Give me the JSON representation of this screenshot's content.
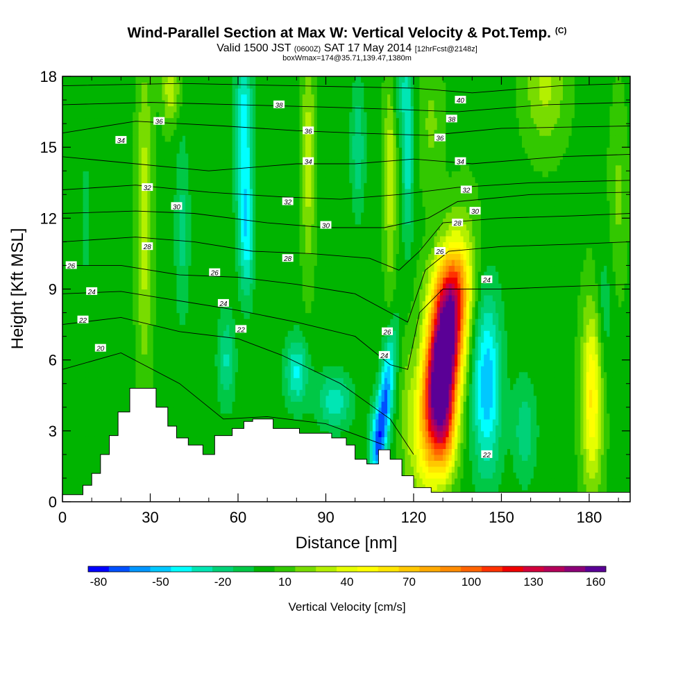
{
  "header": {
    "title": "Wind-Parallel Section at Max W: Vertical Velocity & Pot.Temp.",
    "title_mark": "(C)",
    "valid_prefix": "Valid 1500 JST",
    "valid_zulu": "(0600Z)",
    "valid_date": "SAT 17 May 2014",
    "forecast_info": "[12hrFcst@2148z]",
    "box_info": "boxWmax=174@35.71,139.47,1380m"
  },
  "chart_data": {
    "type": "heatmap",
    "xlabel": "Distance [nm]",
    "ylabel": "Height [Kft MSL]",
    "xlim": [
      0,
      194
    ],
    "ylim": [
      0,
      18
    ],
    "x_ticks": [
      0,
      30,
      60,
      90,
      120,
      150,
      180
    ],
    "y_ticks": [
      0,
      3,
      6,
      9,
      12,
      15,
      18
    ],
    "colorbar": {
      "label": "Vertical Velocity [cm/s]",
      "tick_labels": [
        -80,
        -50,
        -20,
        10,
        40,
        70,
        100,
        130,
        160
      ],
      "min": -85,
      "step": 10,
      "colors": [
        "#0000ff",
        "#0050ff",
        "#0096ff",
        "#00c8ff",
        "#00ffff",
        "#00e6b4",
        "#00d278",
        "#00c846",
        "#00b400",
        "#32c800",
        "#78dc00",
        "#b4f000",
        "#e6ff00",
        "#ffff00",
        "#ffe600",
        "#ffc800",
        "#ffaa00",
        "#ff8c00",
        "#ff6400",
        "#ff3200",
        "#f00000",
        "#d2003c",
        "#b4005a",
        "#8c0078",
        "#5a0096"
      ]
    },
    "terrain": [
      [
        0,
        0.3
      ],
      [
        7,
        0.7
      ],
      [
        10,
        1.2
      ],
      [
        13,
        2.0
      ],
      [
        16,
        2.8
      ],
      [
        19,
        3.8
      ],
      [
        23,
        4.8
      ],
      [
        32,
        4.0
      ],
      [
        36,
        3.2
      ],
      [
        39,
        2.7
      ],
      [
        43,
        2.4
      ],
      [
        48,
        2.0
      ],
      [
        52,
        2.8
      ],
      [
        58,
        3.1
      ],
      [
        62,
        3.4
      ],
      [
        65,
        3.5
      ],
      [
        72,
        3.1
      ],
      [
        81,
        2.9
      ],
      [
        92,
        2.7
      ],
      [
        97,
        2.4
      ],
      [
        100,
        1.8
      ],
      [
        104,
        1.6
      ],
      [
        108,
        2.2
      ],
      [
        112,
        1.8
      ],
      [
        116,
        1.1
      ],
      [
        120,
        0.6
      ],
      [
        126,
        0.4
      ],
      [
        194,
        0.3
      ]
    ],
    "theta_contours": [
      {
        "label": "20",
        "pts": [
          [
            0,
            5.6
          ],
          [
            20,
            6.3
          ],
          [
            40,
            5.0
          ],
          [
            55,
            3.5
          ],
          [
            70,
            3.6
          ],
          [
            90,
            3.3
          ],
          [
            110,
            2.4
          ]
        ]
      },
      {
        "label": "22",
        "pts": [
          [
            0,
            7.5
          ],
          [
            20,
            7.8
          ],
          [
            40,
            7.2
          ],
          [
            60,
            6.9
          ],
          [
            75,
            6.2
          ],
          [
            95,
            5.0
          ],
          [
            112,
            3.5
          ],
          [
            120,
            2.0
          ]
        ]
      },
      {
        "label": "24",
        "pts": [
          [
            0,
            8.8
          ],
          [
            20,
            8.9
          ],
          [
            40,
            8.5
          ],
          [
            60,
            8.1
          ],
          [
            80,
            7.6
          ],
          [
            100,
            7.0
          ],
          [
            112,
            5.8
          ],
          [
            118,
            5.6
          ],
          [
            122,
            8.0
          ],
          [
            130,
            9.0
          ],
          [
            150,
            9.0
          ],
          [
            170,
            9.1
          ],
          [
            194,
            9.2
          ]
        ]
      },
      {
        "label": "26",
        "pts": [
          [
            0,
            10.0
          ],
          [
            20,
            10.0
          ],
          [
            40,
            9.6
          ],
          [
            60,
            9.5
          ],
          [
            80,
            9.2
          ],
          [
            100,
            8.8
          ],
          [
            112,
            8.0
          ],
          [
            118,
            7.6
          ],
          [
            124,
            9.8
          ],
          [
            132,
            10.6
          ],
          [
            150,
            10.8
          ],
          [
            175,
            10.9
          ],
          [
            194,
            11.0
          ]
        ]
      },
      {
        "label": "28",
        "pts": [
          [
            0,
            11.0
          ],
          [
            25,
            11.2
          ],
          [
            45,
            11.0
          ],
          [
            65,
            10.6
          ],
          [
            85,
            10.5
          ],
          [
            105,
            10.3
          ],
          [
            115,
            9.8
          ],
          [
            122,
            10.6
          ],
          [
            130,
            11.8
          ],
          [
            150,
            12.0
          ],
          [
            175,
            12.1
          ],
          [
            194,
            12.2
          ]
        ]
      },
      {
        "label": "30",
        "pts": [
          [
            0,
            12.2
          ],
          [
            25,
            12.3
          ],
          [
            45,
            12.2
          ],
          [
            70,
            11.8
          ],
          [
            90,
            11.6
          ],
          [
            110,
            11.6
          ],
          [
            125,
            12.0
          ],
          [
            135,
            12.7
          ],
          [
            160,
            13.0
          ],
          [
            194,
            13.1
          ]
        ]
      },
      {
        "label": "32",
        "pts": [
          [
            0,
            13.2
          ],
          [
            25,
            13.4
          ],
          [
            50,
            13.1
          ],
          [
            75,
            12.9
          ],
          [
            95,
            12.8
          ],
          [
            115,
            13.0
          ],
          [
            135,
            13.3
          ],
          [
            160,
            13.5
          ],
          [
            194,
            13.6
          ]
        ]
      },
      {
        "label": "34",
        "pts": [
          [
            0,
            14.6
          ],
          [
            25,
            14.3
          ],
          [
            50,
            14.0
          ],
          [
            80,
            14.3
          ],
          [
            100,
            14.3
          ],
          [
            120,
            14.5
          ],
          [
            140,
            14.3
          ],
          [
            170,
            14.6
          ],
          [
            194,
            14.7
          ]
        ]
      },
      {
        "label": "36",
        "pts": [
          [
            0,
            15.6
          ],
          [
            25,
            16.1
          ],
          [
            55,
            15.9
          ],
          [
            80,
            15.7
          ],
          [
            100,
            15.6
          ],
          [
            125,
            15.5
          ],
          [
            150,
            15.8
          ],
          [
            194,
            15.9
          ]
        ]
      },
      {
        "label": "38",
        "pts": [
          [
            0,
            16.8
          ],
          [
            30,
            16.9
          ],
          [
            60,
            16.8
          ],
          [
            90,
            16.7
          ],
          [
            115,
            16.6
          ],
          [
            135,
            16.5
          ],
          [
            165,
            16.8
          ],
          [
            194,
            16.9
          ]
        ]
      },
      {
        "label": "40",
        "pts": [
          [
            0,
            17.6
          ],
          [
            40,
            17.7
          ],
          [
            80,
            17.6
          ],
          [
            120,
            17.5
          ],
          [
            140,
            17.3
          ],
          [
            170,
            17.6
          ],
          [
            194,
            17.7
          ]
        ]
      }
    ],
    "theta_labels": [
      {
        "text": "20",
        "x": 13,
        "y": 6.5
      },
      {
        "text": "22",
        "x": 7,
        "y": 7.7
      },
      {
        "text": "24",
        "x": 10,
        "y": 8.9
      },
      {
        "text": "26",
        "x": 3,
        "y": 10.0
      },
      {
        "text": "28",
        "x": 29,
        "y": 10.8
      },
      {
        "text": "32",
        "x": 29,
        "y": 13.3
      },
      {
        "text": "34",
        "x": 20,
        "y": 15.3
      },
      {
        "text": "36",
        "x": 33,
        "y": 16.1
      },
      {
        "text": "30",
        "x": 39,
        "y": 12.5
      },
      {
        "text": "26",
        "x": 52,
        "y": 9.7
      },
      {
        "text": "24",
        "x": 55,
        "y": 8.4
      },
      {
        "text": "22",
        "x": 61,
        "y": 7.3
      },
      {
        "text": "28",
        "x": 77,
        "y": 10.3
      },
      {
        "text": "32",
        "x": 77,
        "y": 12.7
      },
      {
        "text": "30",
        "x": 90,
        "y": 11.7
      },
      {
        "text": "34",
        "x": 84,
        "y": 14.4
      },
      {
        "text": "36",
        "x": 84,
        "y": 15.7
      },
      {
        "text": "38",
        "x": 74,
        "y": 16.8
      },
      {
        "text": "26",
        "x": 111,
        "y": 7.2
      },
      {
        "text": "24",
        "x": 110,
        "y": 6.2
      },
      {
        "text": "26",
        "x": 129,
        "y": 10.6
      },
      {
        "text": "28",
        "x": 135,
        "y": 11.8
      },
      {
        "text": "30",
        "x": 141,
        "y": 12.3
      },
      {
        "text": "32",
        "x": 138,
        "y": 13.2
      },
      {
        "text": "34",
        "x": 136,
        "y": 14.4
      },
      {
        "text": "36",
        "x": 129,
        "y": 15.4
      },
      {
        "text": "38",
        "x": 133,
        "y": 16.2
      },
      {
        "text": "40",
        "x": 136,
        "y": 17.0
      },
      {
        "text": "24",
        "x": 145,
        "y": 9.4
      },
      {
        "text": "22",
        "x": 145,
        "y": 2.0
      }
    ],
    "w_features": [
      {
        "x": 130,
        "y": 6.0,
        "sx": 6,
        "sy": 4.0,
        "a": 200,
        "tilt": 0.9
      },
      {
        "x": 131,
        "y": 3.0,
        "sx": 4,
        "sy": 2.0,
        "a": 50,
        "tilt": 0
      },
      {
        "x": 132,
        "y": 9.0,
        "sx": 8,
        "sy": 1.6,
        "a": 25,
        "tilt": 0
      },
      {
        "x": 110,
        "y": 4.0,
        "sx": 2.6,
        "sy": 3.0,
        "a": -70,
        "tilt": 0.8
      },
      {
        "x": 107,
        "y": 2.5,
        "sx": 2.5,
        "sy": 1.5,
        "a": -30,
        "tilt": 0
      },
      {
        "x": 145,
        "y": 5.0,
        "sx": 5,
        "sy": 3.8,
        "a": -55,
        "tilt": 0
      },
      {
        "x": 158,
        "y": 3.0,
        "sx": 4,
        "sy": 2.2,
        "a": -25,
        "tilt": 0
      },
      {
        "x": 181,
        "y": 4.5,
        "sx": 3.5,
        "sy": 3.8,
        "a": 55,
        "tilt": 0
      },
      {
        "x": 118,
        "y": 4.0,
        "sx": 3,
        "sy": 3.0,
        "a": 15,
        "tilt": 0
      },
      {
        "x": 80,
        "y": 5.5,
        "sx": 4,
        "sy": 1.5,
        "a": -38,
        "tilt": 0
      },
      {
        "x": 93,
        "y": 4.3,
        "sx": 6,
        "sy": 1.2,
        "a": -33,
        "tilt": 0
      },
      {
        "x": 56,
        "y": 6.0,
        "sx": 3,
        "sy": 2.0,
        "a": -28,
        "tilt": 0
      },
      {
        "x": 28,
        "y": 12.0,
        "sx": 2.6,
        "sy": 6.5,
        "a": 30,
        "tilt": 0
      },
      {
        "x": 37,
        "y": 17.5,
        "sx": 3,
        "sy": 1.5,
        "a": 30,
        "tilt": 0
      },
      {
        "x": 41,
        "y": 11.5,
        "sx": 2.6,
        "sy": 4.0,
        "a": -20,
        "tilt": 0
      },
      {
        "x": 62,
        "y": 15.5,
        "sx": 3,
        "sy": 4.0,
        "a": -45,
        "tilt": 0
      },
      {
        "x": 63,
        "y": 11.0,
        "sx": 2.5,
        "sy": 2.5,
        "a": -35,
        "tilt": 0
      },
      {
        "x": 84,
        "y": 14.5,
        "sx": 2.2,
        "sy": 4.5,
        "a": 30,
        "tilt": 0
      },
      {
        "x": 101,
        "y": 15.0,
        "sx": 2.5,
        "sy": 3.0,
        "a": -25,
        "tilt": 0
      },
      {
        "x": 112,
        "y": 14.0,
        "sx": 2,
        "sy": 5.0,
        "a": 30,
        "tilt": 0
      },
      {
        "x": 115,
        "y": 17.5,
        "sx": 3,
        "sy": 1.5,
        "a": -20,
        "tilt": 0
      },
      {
        "x": 118,
        "y": 15.0,
        "sx": 2,
        "sy": 4.0,
        "a": -35,
        "tilt": 0
      },
      {
        "x": 126,
        "y": 16.0,
        "sx": 4,
        "sy": 3.0,
        "a": 15,
        "tilt": 0
      },
      {
        "x": 165,
        "y": 17.5,
        "sx": 7,
        "sy": 2.5,
        "a": 25,
        "tilt": 0
      },
      {
        "x": 190,
        "y": 13.0,
        "sx": 3,
        "sy": 4.0,
        "a": 15,
        "tilt": 0
      },
      {
        "x": 8,
        "y": 12.0,
        "sx": 4,
        "sy": 6.0,
        "a": -8,
        "tilt": 0
      },
      {
        "x": 185,
        "y": 8.0,
        "sx": 3,
        "sy": 3.0,
        "a": -15,
        "tilt": 0
      }
    ],
    "background_w": 2
  }
}
